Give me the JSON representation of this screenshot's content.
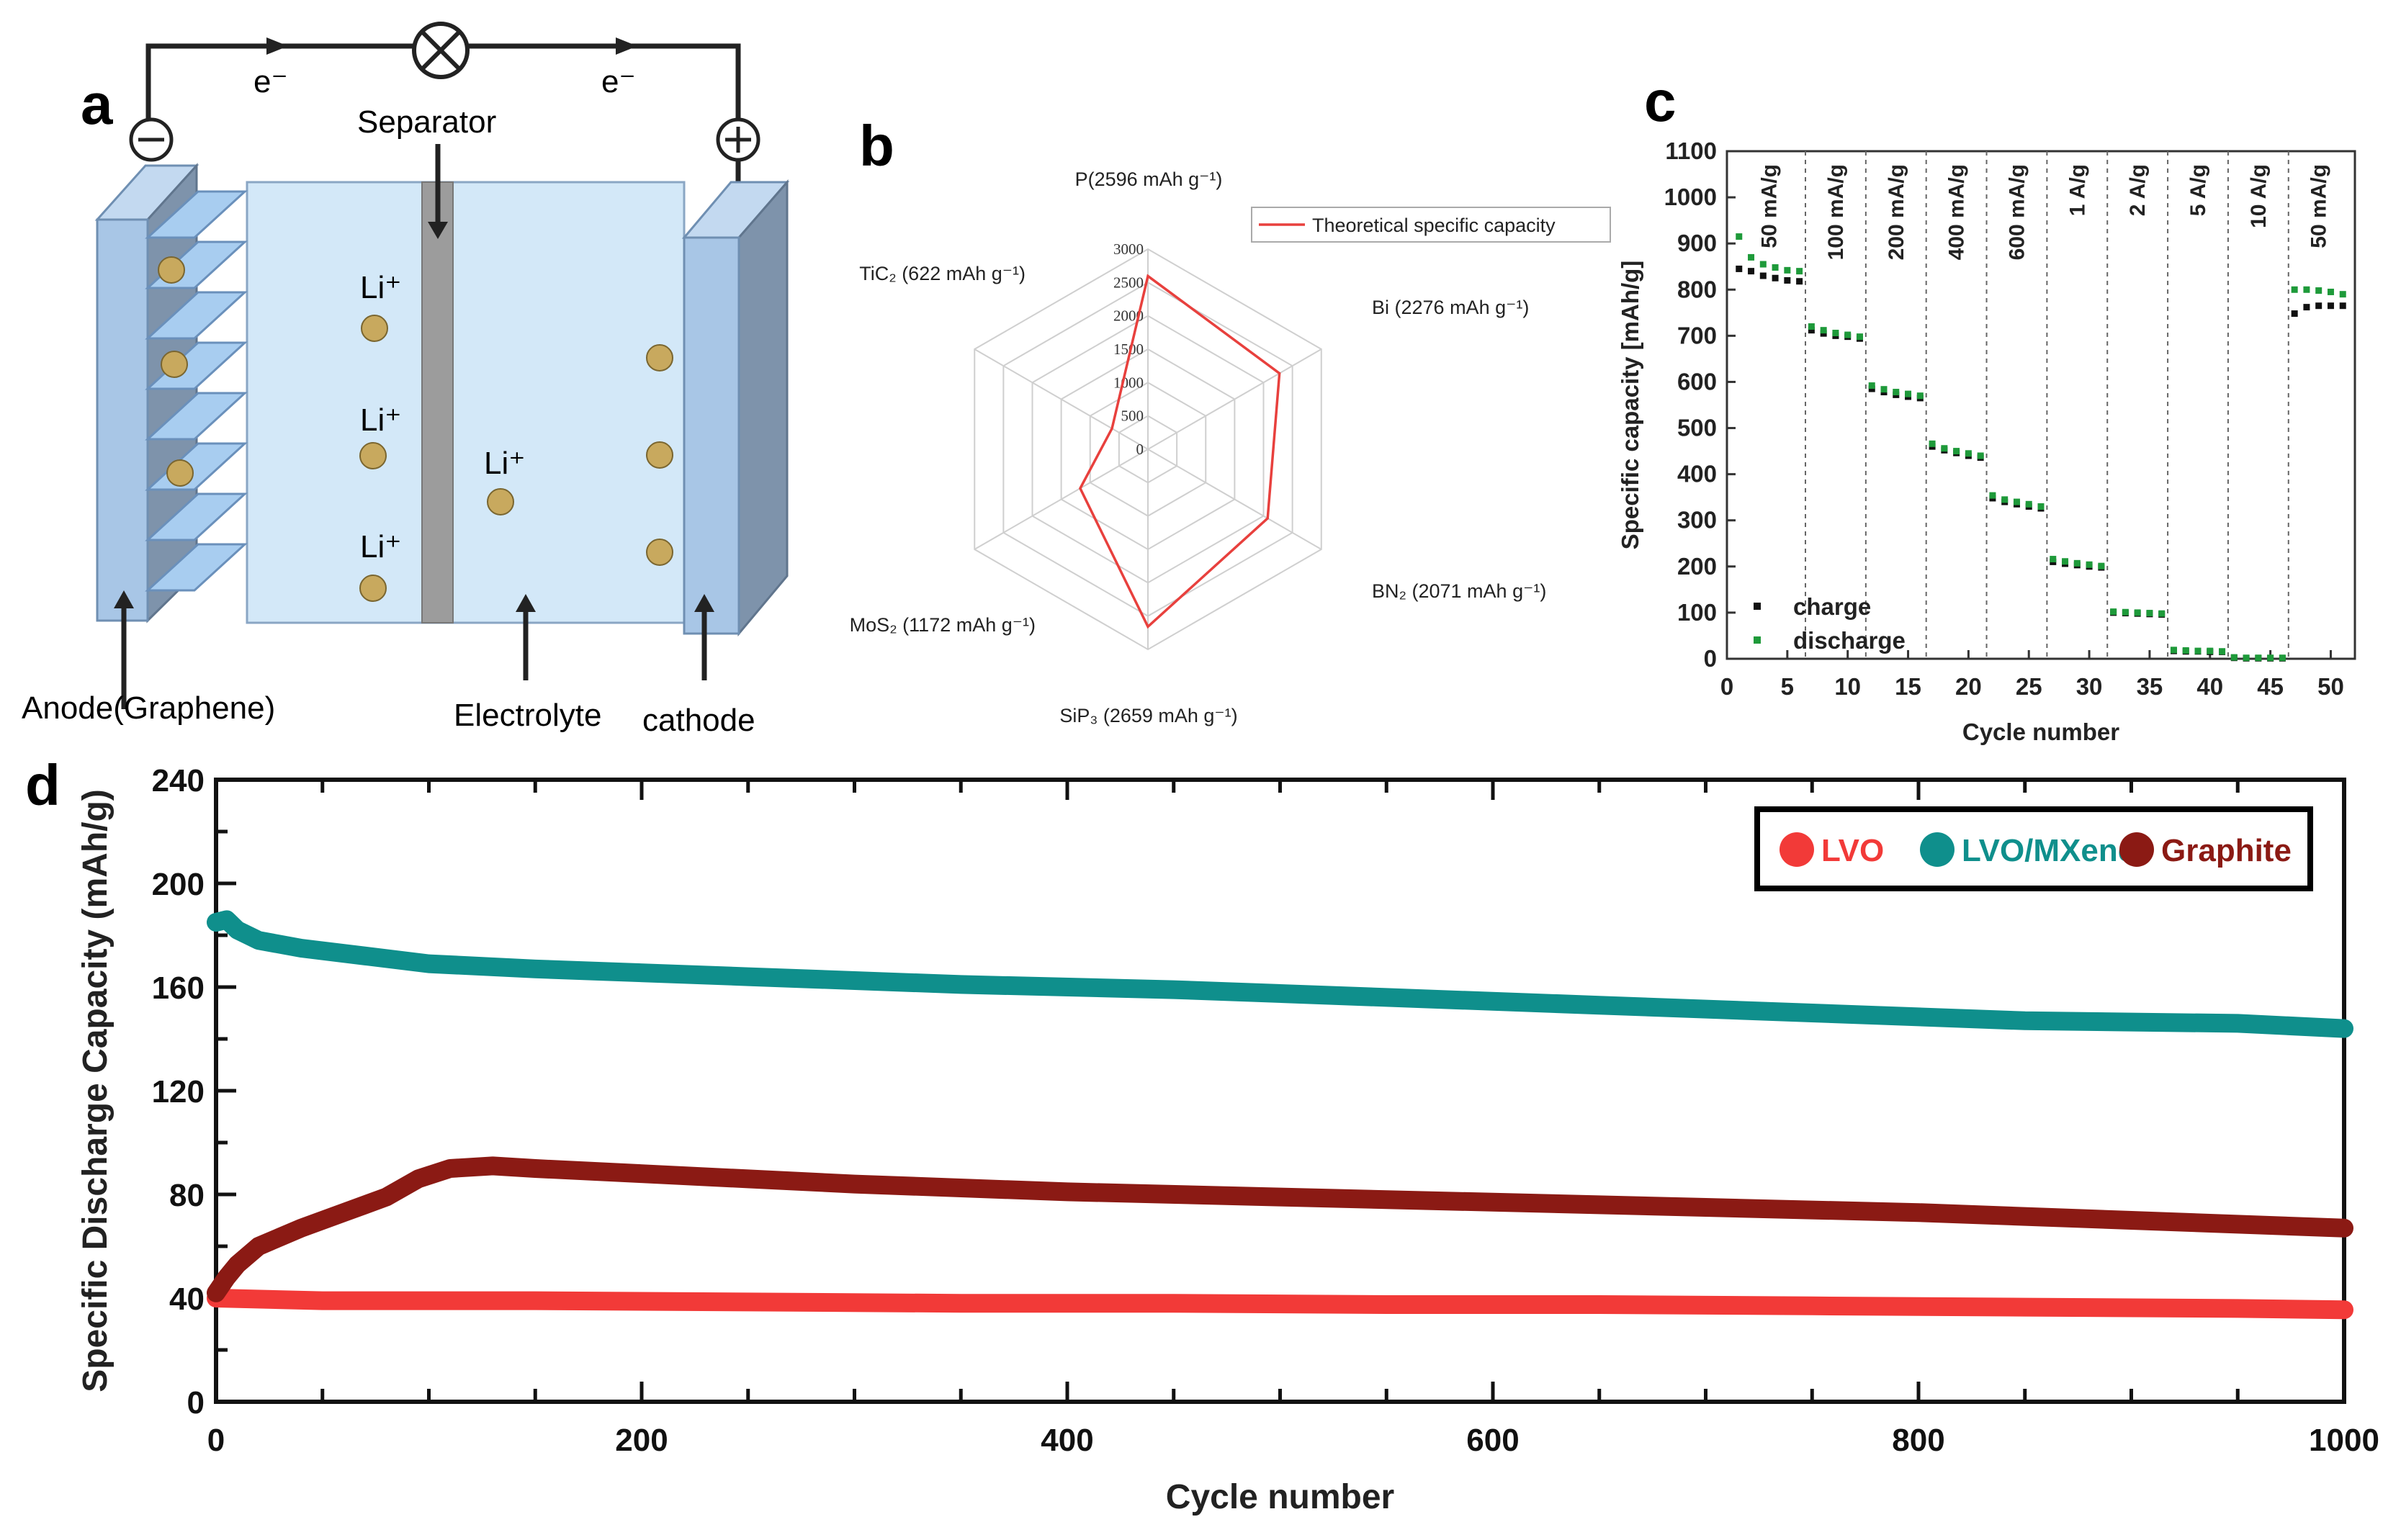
{
  "panel_labels": [
    "a",
    "b",
    "c",
    "d"
  ],
  "diagram_a": {
    "electron_labels": [
      "e⁻",
      "e⁻"
    ],
    "separator_label": "Separator",
    "ion_labels": [
      "Li⁺",
      "Li⁺",
      "Li⁺",
      "Li⁺"
    ],
    "anode_label": "Anode(Graphene)",
    "electrolyte_label": "Electrolyte",
    "cathode_label": "cathode",
    "minus_sign": "⊖",
    "plus_sign": "⊕",
    "lamp_symbol": "⊗",
    "colors": {
      "cell": "#d3e8f8",
      "electrode": "#a8c6e6",
      "separator": "#9c9c9c",
      "ion": "#c8a95e"
    }
  },
  "chart_data": [
    {
      "id": "b",
      "type": "radar",
      "legend": "Theoretical specific capacity",
      "legend_position": "top-right",
      "axes": [
        {
          "formula": "P",
          "value": 2596,
          "label": "P(2596 mAh g⁻¹)"
        },
        {
          "formula": "Bi",
          "value": 2276,
          "label": "Bi (2276 mAh g⁻¹)"
        },
        {
          "formula": "BN2",
          "value": 2071,
          "label": "BN₂ (2071 mAh g⁻¹)"
        },
        {
          "formula": "SiP3",
          "value": 2659,
          "label": "SiP₃ (2659 mAh g⁻¹)"
        },
        {
          "formula": "MoS2",
          "value": 1172,
          "label": "MoS₂ (1172 mAh g⁻¹)"
        },
        {
          "formula": "TiC2",
          "value": 622,
          "label": "TiC₂ (622 mAh g⁻¹)"
        }
      ],
      "rlim": [
        0,
        3000
      ],
      "ticks": [
        0,
        500,
        1000,
        1500,
        2000,
        2500,
        3000
      ],
      "tick_labels": [
        "0",
        "500",
        "1000",
        "1500",
        "2000",
        "2500",
        "3000"
      ],
      "line_color": "#e8403d"
    },
    {
      "id": "c",
      "type": "scatter",
      "xlabel": "Cycle number",
      "ylabel": "Specific capacity [mAh/g]",
      "xlim": [
        0,
        52
      ],
      "ylim": [
        0,
        1100
      ],
      "xticks": [
        0,
        5,
        10,
        15,
        20,
        25,
        30,
        35,
        40,
        45,
        50
      ],
      "xtick_labels": [
        "0",
        "5",
        "10",
        "15",
        "20",
        "25",
        "30",
        "35",
        "40",
        "45",
        "50"
      ],
      "yticks": [
        0,
        100,
        200,
        300,
        400,
        500,
        600,
        700,
        800,
        900,
        1000,
        1100
      ],
      "ytick_labels": [
        "0",
        "100",
        "200",
        "300",
        "400",
        "500",
        "600",
        "700",
        "800",
        "900",
        "1000",
        "1100"
      ],
      "rate_labels": [
        "50 mA/g",
        "100 mA/g",
        "200 mA/g",
        "400 mA/g",
        "600 mA/g",
        "1 A/g",
        "2 A/g",
        "5 A/g",
        "10 A/g",
        "50 mA/g"
      ],
      "segment_boundaries": [
        6.5,
        11.5,
        16.5,
        21.5,
        26.5,
        31.5,
        36.5,
        41.5,
        46.5
      ],
      "series": [
        {
          "name": "charge",
          "color": "#111111",
          "values": [
            845,
            840,
            830,
            825,
            820,
            818,
            712,
            705,
            700,
            698,
            694,
            585,
            578,
            572,
            568,
            565,
            460,
            452,
            446,
            440,
            436,
            348,
            340,
            335,
            330,
            326,
            210,
            206,
            203,
            200,
            198,
            100,
            99,
            98,
            97,
            96,
            17,
            16,
            16,
            15,
            15,
            2,
            1,
            1,
            1,
            1,
            748,
            762,
            765,
            765,
            765
          ]
        },
        {
          "name": "discharge",
          "color": "#1e9a3a",
          "values": [
            915,
            870,
            855,
            848,
            842,
            840,
            720,
            712,
            706,
            702,
            698,
            592,
            584,
            578,
            574,
            570,
            466,
            456,
            450,
            445,
            440,
            354,
            345,
            340,
            335,
            330,
            216,
            211,
            207,
            204,
            201,
            102,
            101,
            100,
            99,
            98,
            19,
            18,
            17,
            17,
            16,
            3,
            2,
            2,
            2,
            2,
            800,
            800,
            798,
            795,
            790
          ]
        }
      ]
    },
    {
      "id": "d",
      "type": "line",
      "xlabel": "Cycle number",
      "ylabel": "Specific Discharge Capacity (mAh/g)",
      "xlim": [
        0,
        1000
      ],
      "ylim": [
        0,
        240
      ],
      "xticks": [
        0,
        200,
        400,
        600,
        800,
        1000
      ],
      "xtick_labels": [
        "0",
        "200",
        "400",
        "600",
        "800",
        "1000"
      ],
      "yticks": [
        0,
        40,
        80,
        120,
        160,
        200,
        240
      ],
      "ytick_labels": [
        "0",
        "40",
        "80",
        "120",
        "160",
        "200",
        "240"
      ],
      "legend_position": "top-right",
      "series": [
        {
          "name": "LVO",
          "color": "#f23a38",
          "x": [
            0,
            50,
            150,
            250,
            350,
            450,
            550,
            650,
            750,
            850,
            950,
            1000
          ],
          "y": [
            40,
            39,
            39,
            38.5,
            38,
            38,
            37.5,
            37.5,
            37,
            36.5,
            36,
            35.5
          ]
        },
        {
          "name": "LVO/MXene",
          "color": "#0f8f8c",
          "x": [
            0,
            5,
            10,
            20,
            40,
            70,
            100,
            150,
            250,
            350,
            450,
            550,
            650,
            750,
            850,
            950,
            1000
          ],
          "y": [
            185,
            186,
            182,
            178,
            175,
            172,
            169,
            167,
            164,
            161,
            159,
            156,
            153,
            150,
            147,
            146,
            144
          ]
        },
        {
          "name": "Graphite",
          "color": "#8b1a14",
          "x": [
            0,
            5,
            10,
            20,
            40,
            60,
            80,
            95,
            110,
            130,
            150,
            200,
            250,
            300,
            400,
            500,
            600,
            700,
            800,
            900,
            1000
          ],
          "y": [
            42,
            48,
            53,
            60,
            67,
            73,
            79,
            86,
            90,
            91,
            90,
            88,
            86,
            84,
            81,
            79,
            77,
            75,
            73,
            70,
            67
          ]
        }
      ]
    }
  ]
}
